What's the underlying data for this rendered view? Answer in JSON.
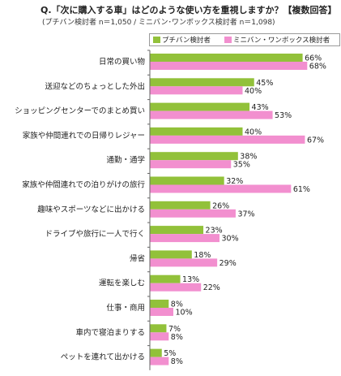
{
  "title": "Q.「次に購入する車」はどのような使い方を重視しますか？【複数回答】",
  "subtitle": "(プチバン検討者 n＝1,050 / ミニバン･ワンボックス検討者 n＝1,098)",
  "colors": {
    "petit": "#92c13a",
    "mini": "#f28fcf"
  },
  "chart_data": {
    "type": "bar",
    "orientation": "horizontal",
    "unit": "%",
    "xlim": [
      0,
      100
    ],
    "categories": [
      "日常の買い物",
      "送迎などのちょっとした外出",
      "ショッピングセンターでのまとめ買い",
      "家族や仲間連れでの日帰りレジャー",
      "通勤・通学",
      "家族や仲間連れでの泊りがけの旅行",
      "趣味やスポーツなどに出かける",
      "ドライブや旅行に一人で行く",
      "帰省",
      "運転を楽しむ",
      "仕事・商用",
      "車内で寝泊まりする",
      "ペットを連れて出かける"
    ],
    "series": [
      {
        "name": "プチバン検討者",
        "values": [
          66,
          45,
          43,
          40,
          38,
          32,
          26,
          23,
          18,
          13,
          8,
          7,
          5
        ]
      },
      {
        "name": "ミニバン・ワンボックス検討者",
        "values": [
          68,
          40,
          53,
          67,
          35,
          61,
          37,
          30,
          29,
          22,
          10,
          8,
          8
        ]
      }
    ],
    "legend": "top-right",
    "grid": false
  }
}
